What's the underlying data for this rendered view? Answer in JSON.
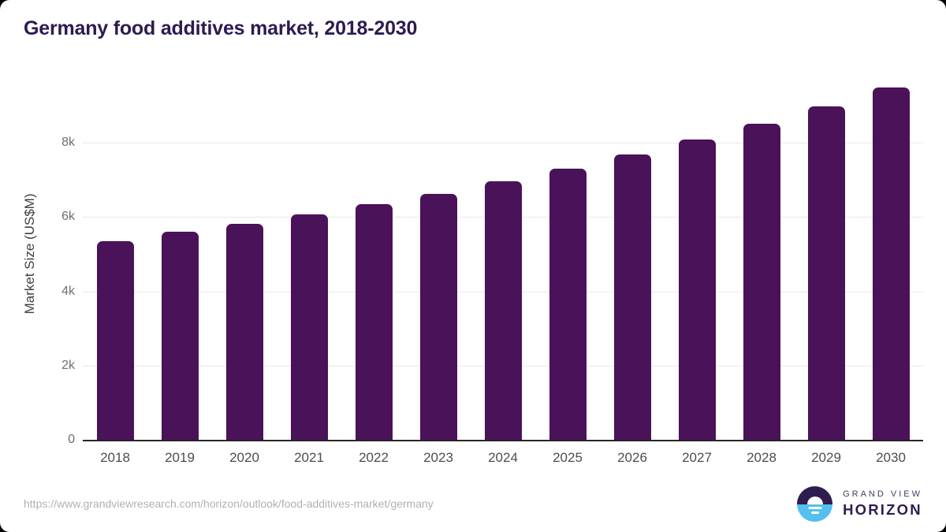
{
  "page": {
    "title": "Germany food additives market, 2018-2030"
  },
  "chart_data": {
    "type": "bar",
    "title": "Germany food additives market, 2018-2030",
    "categories": [
      "2018",
      "2019",
      "2020",
      "2021",
      "2022",
      "2023",
      "2024",
      "2025",
      "2026",
      "2027",
      "2028",
      "2029",
      "2030"
    ],
    "values": [
      5360,
      5600,
      5810,
      6070,
      6340,
      6630,
      6970,
      7310,
      7690,
      8080,
      8520,
      8980,
      9500
    ],
    "xlabel": "",
    "ylabel": "Market Size (US$M)",
    "ylim": [
      0,
      10000
    ],
    "yticks": [
      {
        "value": 0,
        "label": "0"
      },
      {
        "value": 2000,
        "label": "2k"
      },
      {
        "value": 4000,
        "label": "4k"
      },
      {
        "value": 6000,
        "label": "6k"
      },
      {
        "value": 8000,
        "label": "8k"
      }
    ],
    "grid": "horizontal-only",
    "legend": "none",
    "bar_color": "#4a1259"
  },
  "footer": {
    "source_url": "https://www.grandviewresearch.com/horizon/outlook/food-additives-market/germany",
    "logo": {
      "line1": "GRAND VIEW",
      "line2": "HORIZON"
    }
  },
  "colors": {
    "title": "#2e1a52",
    "bar": "#4a1259",
    "gridline": "#e8e8e8",
    "axis_line": "#262626",
    "y_tick_label": "#6f6f6f",
    "x_tick_label": "#4d4d4d",
    "source_url": "#b1b1b1",
    "logo_purple": "#2e1d51",
    "logo_blue": "#53c0ef"
  }
}
